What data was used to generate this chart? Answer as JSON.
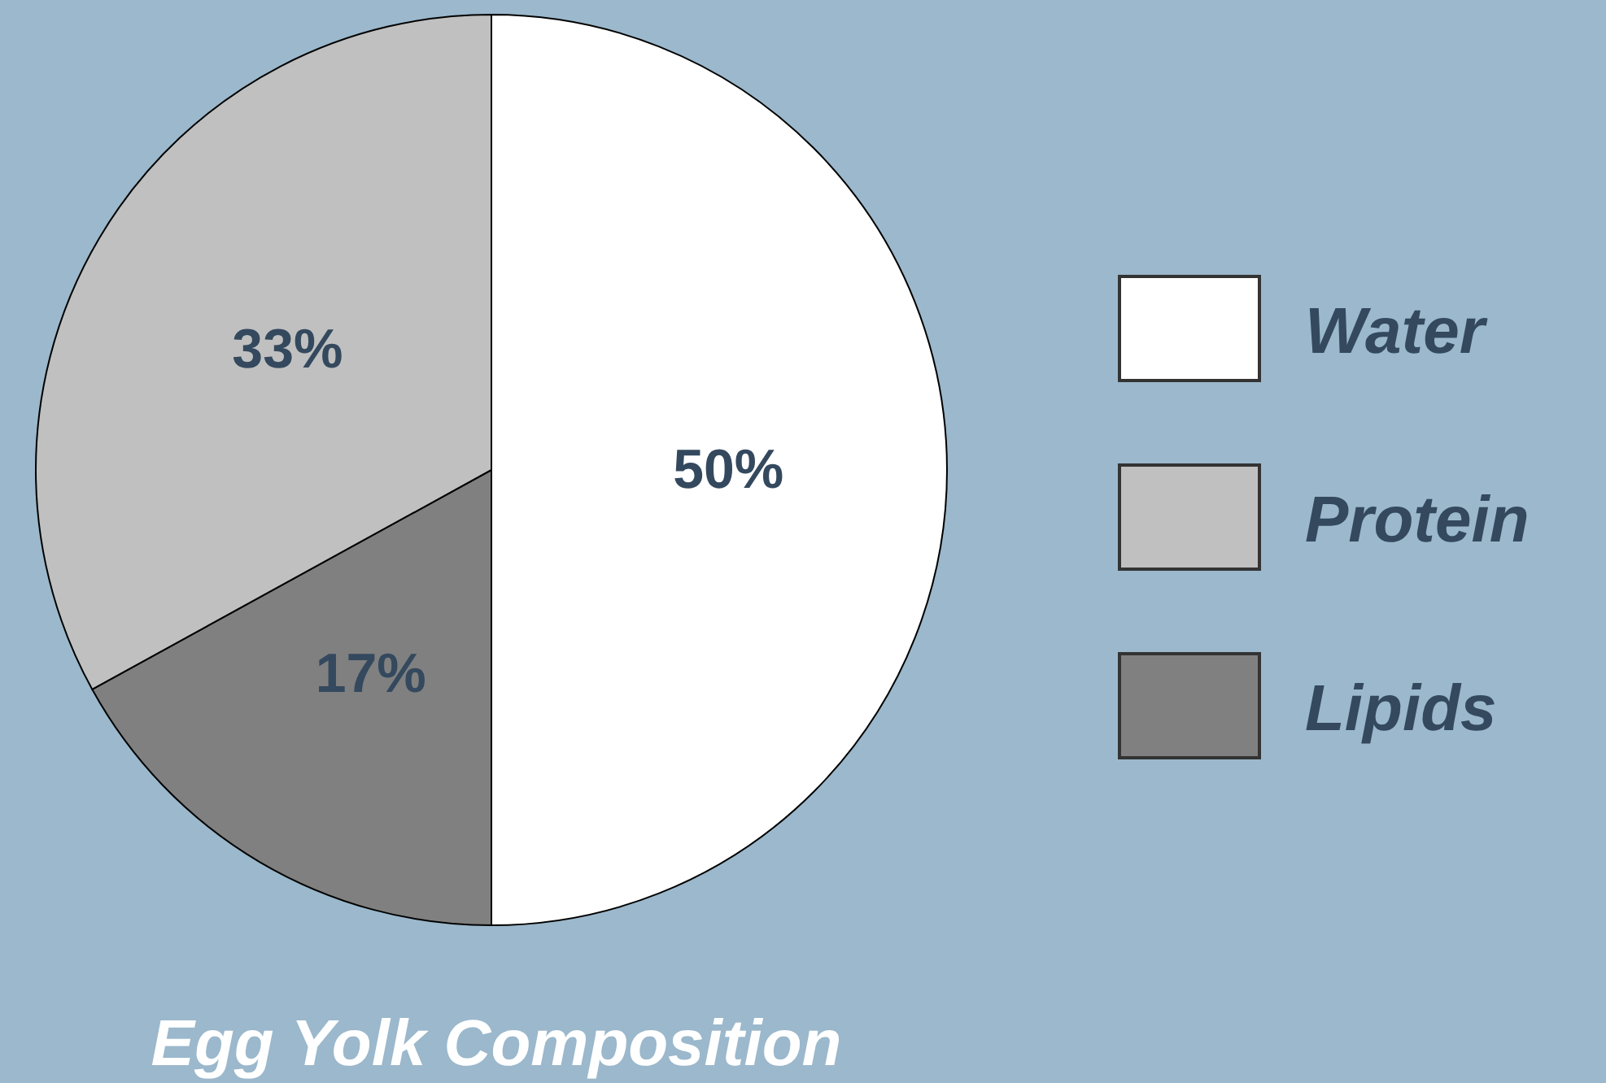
{
  "chart_data": {
    "type": "pie",
    "title": "Egg Yolk Composition",
    "categories": [
      "Water",
      "Lipids",
      "Protein"
    ],
    "values": [
      50,
      17,
      33
    ],
    "colors": [
      "#ffffff",
      "#808080",
      "#c0c0c0"
    ],
    "value_labels": [
      "50%",
      "17%",
      "33%"
    ],
    "legend": "right"
  }
}
